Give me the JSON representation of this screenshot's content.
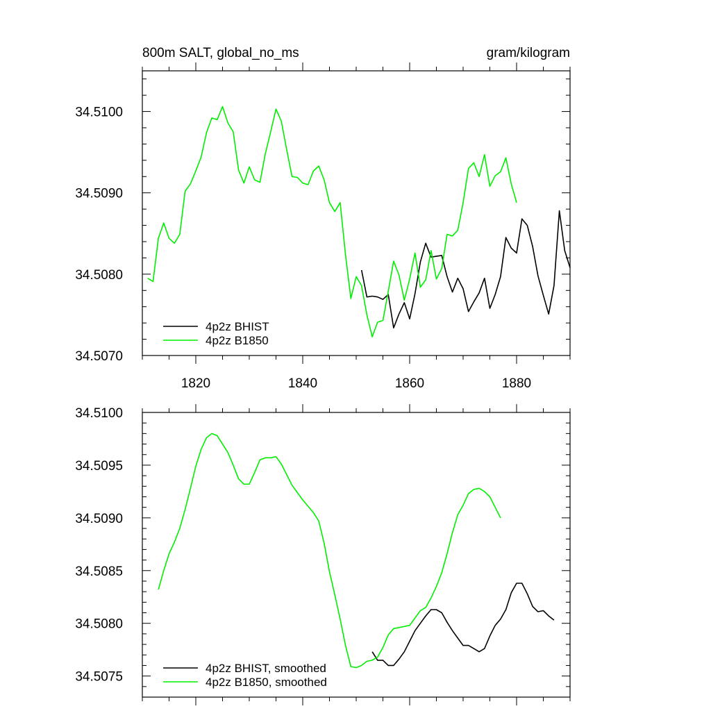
{
  "chart_data": [
    {
      "type": "line",
      "title": "800m SALT, global_no_ms",
      "units": "gram/kilogram",
      "xlabel": "",
      "ylabel": "",
      "xlim": [
        1810,
        1890
      ],
      "ylim": [
        34.507,
        34.5105
      ],
      "xticks": [
        1820,
        1840,
        1860,
        1880
      ],
      "xtick_labels": [
        "1820",
        "1840",
        "1860",
        "1880"
      ],
      "yticks": [
        34.507,
        34.508,
        34.509,
        34.51
      ],
      "ytick_labels": [
        "34.5070",
        "34.5080",
        "34.5090",
        "34.5100"
      ],
      "legend": "bottom-left",
      "series": [
        {
          "name": "4p2z BHIST",
          "color": "#000000",
          "x": [
            1851,
            1852,
            1853,
            1854,
            1855,
            1856,
            1857,
            1858,
            1859,
            1860,
            1861,
            1862,
            1863,
            1864,
            1865,
            1866,
            1867,
            1868,
            1869,
            1870,
            1871,
            1872,
            1873,
            1874,
            1875,
            1876,
            1877,
            1878,
            1879,
            1880,
            1881,
            1882,
            1883,
            1884,
            1885,
            1886,
            1887,
            1888,
            1889,
            1890
          ],
          "y": [
            34.50805,
            34.50772,
            34.50773,
            34.50772,
            34.50769,
            34.50775,
            34.50734,
            34.50751,
            34.50765,
            34.50745,
            34.50776,
            34.50815,
            34.50838,
            34.50821,
            34.50822,
            34.50823,
            34.50797,
            34.50778,
            34.50795,
            34.50782,
            34.50754,
            34.50766,
            34.50777,
            34.50795,
            34.50758,
            34.50775,
            34.50797,
            34.50845,
            34.50832,
            34.50826,
            34.50868,
            34.5086,
            34.50834,
            34.50798,
            34.50774,
            34.50751,
            34.50786,
            34.50878,
            34.50829,
            34.50808
          ]
        },
        {
          "name": "4p2z B1850",
          "color": "#00ee00",
          "x": [
            1811,
            1812,
            1813,
            1814,
            1815,
            1816,
            1817,
            1818,
            1819,
            1820,
            1821,
            1822,
            1823,
            1824,
            1825,
            1826,
            1827,
            1828,
            1829,
            1830,
            1831,
            1832,
            1833,
            1834,
            1835,
            1836,
            1837,
            1838,
            1839,
            1840,
            1841,
            1842,
            1843,
            1844,
            1845,
            1846,
            1847,
            1848,
            1849,
            1850,
            1851,
            1852,
            1853,
            1854,
            1855,
            1856,
            1857,
            1858,
            1859,
            1860,
            1861,
            1862,
            1863,
            1864,
            1865,
            1866,
            1867,
            1868,
            1869,
            1870,
            1871,
            1872,
            1873,
            1874,
            1875,
            1876,
            1877,
            1878,
            1879,
            1880
          ],
          "y": [
            34.50795,
            34.50791,
            34.50844,
            34.50863,
            34.50844,
            34.50838,
            34.50849,
            34.50902,
            34.50911,
            34.50927,
            34.50944,
            34.50974,
            34.50992,
            34.5099,
            34.51006,
            34.50986,
            34.50975,
            34.50928,
            34.50912,
            34.50932,
            34.50916,
            34.50913,
            34.50948,
            34.50975,
            34.51003,
            34.50988,
            34.50953,
            34.5092,
            34.50919,
            34.50912,
            34.5091,
            34.50927,
            34.50933,
            34.50916,
            34.50888,
            34.50877,
            34.50888,
            34.50824,
            34.5077,
            34.50797,
            34.50786,
            34.5075,
            34.50723,
            34.50741,
            34.50743,
            34.50779,
            34.50816,
            34.50799,
            34.50768,
            34.50794,
            34.50826,
            34.50784,
            34.50793,
            34.50829,
            34.50794,
            34.50807,
            34.50849,
            34.50847,
            34.50854,
            34.50888,
            34.5093,
            34.50937,
            34.5092,
            34.50947,
            34.50908,
            34.50921,
            34.50926,
            34.50943,
            34.50911,
            34.50888
          ]
        }
      ]
    },
    {
      "type": "line",
      "title": "",
      "xlabel": "",
      "ylabel": "",
      "xlim": [
        1810,
        1890
      ],
      "ylim": [
        34.5073,
        34.51
      ],
      "xticks": [
        1820,
        1840,
        1860,
        1880
      ],
      "yticks": [
        34.5075,
        34.508,
        34.5085,
        34.509,
        34.5095,
        34.51
      ],
      "ytick_labels": [
        "34.5075",
        "34.5080",
        "34.5085",
        "34.5090",
        "34.5095",
        "34.5100"
      ],
      "legend": "bottom-left",
      "series": [
        {
          "name": "4p2z BHIST, smoothed",
          "color": "#000000",
          "x": [
            1853,
            1854,
            1855,
            1856,
            1857,
            1858,
            1859,
            1860,
            1861,
            1862,
            1863,
            1864,
            1865,
            1866,
            1867,
            1868,
            1869,
            1870,
            1871,
            1872,
            1873,
            1874,
            1875,
            1876,
            1877,
            1878,
            1879,
            1880,
            1881,
            1882,
            1883,
            1884,
            1885,
            1886,
            1887
          ],
          "y": [
            34.50773,
            34.50765,
            34.50765,
            34.5076,
            34.5076,
            34.50766,
            34.50773,
            34.50783,
            34.50793,
            34.508,
            34.50807,
            34.50813,
            34.50813,
            34.5081,
            34.50801,
            34.50793,
            34.50786,
            34.50779,
            34.50779,
            34.50776,
            34.50773,
            34.50776,
            34.50788,
            34.50798,
            34.50804,
            34.50813,
            34.50829,
            34.50838,
            34.50838,
            34.50828,
            34.50816,
            34.50811,
            34.50812,
            34.50807,
            34.50803
          ]
        },
        {
          "name": "4p2z B1850, smoothed",
          "color": "#00ee00",
          "x": [
            1813,
            1814,
            1815,
            1816,
            1817,
            1818,
            1819,
            1820,
            1821,
            1822,
            1823,
            1824,
            1825,
            1826,
            1827,
            1828,
            1829,
            1830,
            1831,
            1832,
            1833,
            1834,
            1835,
            1836,
            1837,
            1838,
            1839,
            1840,
            1841,
            1842,
            1843,
            1844,
            1845,
            1846,
            1847,
            1848,
            1849,
            1850,
            1851,
            1852,
            1853,
            1854,
            1855,
            1856,
            1857,
            1858,
            1859,
            1860,
            1861,
            1862,
            1863,
            1864,
            1865,
            1866,
            1867,
            1868,
            1869,
            1870,
            1871,
            1872,
            1873,
            1874,
            1875,
            1876,
            1877
          ],
          "y": [
            34.50832,
            34.5085,
            34.50866,
            34.50877,
            34.5089,
            34.50908,
            34.50928,
            34.50949,
            34.50965,
            34.50976,
            34.5098,
            34.50978,
            34.5097,
            34.50962,
            34.5095,
            34.50937,
            34.50932,
            34.50932,
            34.50943,
            34.50955,
            34.50957,
            34.50957,
            34.50958,
            34.50951,
            34.50941,
            34.50931,
            34.50924,
            34.50917,
            34.50911,
            34.50905,
            34.50897,
            34.50876,
            34.50849,
            34.50827,
            34.50804,
            34.50779,
            34.50759,
            34.50758,
            34.5076,
            34.50764,
            34.50765,
            34.50768,
            34.50777,
            34.50789,
            34.50795,
            34.50796,
            34.50797,
            34.50798,
            34.50805,
            34.50812,
            34.50815,
            34.50824,
            34.50835,
            34.50848,
            34.50866,
            34.50886,
            34.50903,
            34.50912,
            34.50923,
            34.50927,
            34.50928,
            34.50925,
            34.5092,
            34.5091,
            34.509
          ]
        }
      ]
    }
  ]
}
